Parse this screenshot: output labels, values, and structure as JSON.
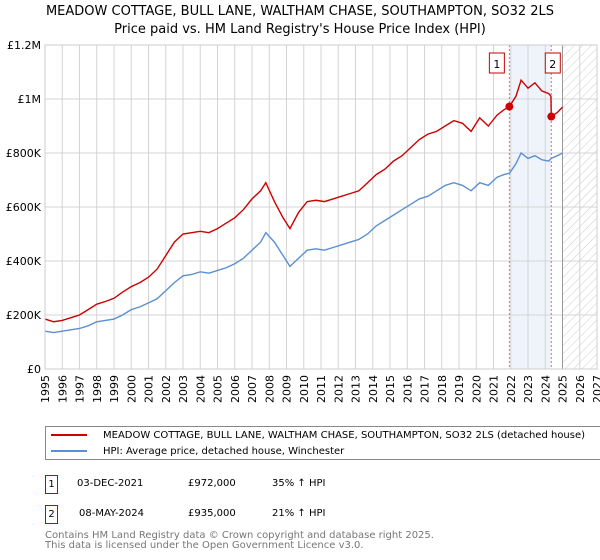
{
  "title_line1": "MEADOW COTTAGE, BULL LANE, WALTHAM CHASE, SOUTHAMPTON, SO32 2LS",
  "title_line2": "Price paid vs. HM Land Registry's House Price Index (HPI)",
  "chart_data": {
    "type": "line",
    "title": "Price paid vs. HM Land Registry's House Price Index (HPI)",
    "xlim": [
      1995,
      2027
    ],
    "ylim": [
      0,
      1200000
    ],
    "y_ticks": [
      {
        "v": 0,
        "label": "£0"
      },
      {
        "v": 200000,
        "label": "£200K"
      },
      {
        "v": 400000,
        "label": "£400K"
      },
      {
        "v": 600000,
        "label": "£600K"
      },
      {
        "v": 800000,
        "label": "£800K"
      },
      {
        "v": 1000000,
        "label": "£1M"
      },
      {
        "v": 1200000,
        "label": "£1.2M"
      }
    ],
    "x_ticks": [
      1995,
      1996,
      1997,
      1998,
      1999,
      2000,
      2001,
      2002,
      2003,
      2004,
      2005,
      2006,
      2007,
      2008,
      2009,
      2010,
      2011,
      2012,
      2013,
      2014,
      2015,
      2016,
      2017,
      2018,
      2019,
      2020,
      2021,
      2022,
      2023,
      2024,
      2025,
      2026,
      2027
    ],
    "grid": true,
    "forecast_hatch_from": 2025.0,
    "shaded_range": [
      2021.92,
      2024.35
    ],
    "series": [
      {
        "name": "MEADOW COTTAGE, BULL LANE, WALTHAM CHASE, SOUTHAMPTON, SO32 2LS (detached house)",
        "color": "#cc0000",
        "x": [
          1995,
          1995.5,
          1996,
          1996.5,
          1997,
          1997.5,
          1998,
          1998.5,
          1999,
          1999.5,
          2000,
          2000.5,
          2001,
          2001.5,
          2002,
          2002.5,
          2003,
          2003.5,
          2004,
          2004.5,
          2005,
          2005.5,
          2006,
          2006.5,
          2007,
          2007.5,
          2007.8,
          2008.3,
          2008.8,
          2009.2,
          2009.7,
          2010.2,
          2010.7,
          2011.2,
          2011.7,
          2012.2,
          2012.7,
          2013.2,
          2013.7,
          2014.2,
          2014.7,
          2015.2,
          2015.7,
          2016.2,
          2016.7,
          2017.2,
          2017.7,
          2018.2,
          2018.7,
          2019.2,
          2019.7,
          2020.2,
          2020.7,
          2021.2,
          2021.6,
          2021.92,
          2022.3,
          2022.6,
          2023.0,
          2023.4,
          2023.8,
          2024.2,
          2024.33,
          2024.35,
          2024.7,
          2025.0
        ],
        "y": [
          185000,
          175000,
          180000,
          190000,
          200000,
          220000,
          240000,
          250000,
          262000,
          285000,
          305000,
          320000,
          340000,
          370000,
          420000,
          470000,
          500000,
          505000,
          510000,
          505000,
          520000,
          540000,
          560000,
          590000,
          630000,
          660000,
          690000,
          620000,
          560000,
          520000,
          580000,
          620000,
          625000,
          620000,
          630000,
          640000,
          650000,
          660000,
          690000,
          720000,
          740000,
          770000,
          790000,
          820000,
          850000,
          870000,
          880000,
          900000,
          920000,
          910000,
          880000,
          930000,
          900000,
          940000,
          960000,
          972000,
          1010000,
          1070000,
          1040000,
          1060000,
          1030000,
          1020000,
          1010000,
          935000,
          950000,
          970000
        ]
      },
      {
        "name": "HPI: Average price, detached house, Winchester",
        "color": "#5b8fd0",
        "x": [
          1995,
          1995.5,
          1996,
          1996.5,
          1997,
          1997.5,
          1998,
          1998.5,
          1999,
          1999.5,
          2000,
          2000.5,
          2001,
          2001.5,
          2002,
          2002.5,
          2003,
          2003.5,
          2004,
          2004.5,
          2005,
          2005.5,
          2006,
          2006.5,
          2007,
          2007.5,
          2007.8,
          2008.3,
          2008.8,
          2009.2,
          2009.7,
          2010.2,
          2010.7,
          2011.2,
          2011.7,
          2012.2,
          2012.7,
          2013.2,
          2013.7,
          2014.2,
          2014.7,
          2015.2,
          2015.7,
          2016.2,
          2016.7,
          2017.2,
          2017.7,
          2018.2,
          2018.7,
          2019.2,
          2019.7,
          2020.2,
          2020.7,
          2021.2,
          2021.6,
          2021.92,
          2022.3,
          2022.6,
          2023.0,
          2023.4,
          2023.8,
          2024.2,
          2024.35,
          2024.7,
          2025.0
        ],
        "y": [
          140000,
          135000,
          140000,
          145000,
          150000,
          160000,
          175000,
          180000,
          185000,
          200000,
          220000,
          230000,
          245000,
          260000,
          290000,
          320000,
          345000,
          350000,
          360000,
          355000,
          365000,
          375000,
          390000,
          410000,
          440000,
          470000,
          505000,
          470000,
          420000,
          380000,
          410000,
          440000,
          445000,
          440000,
          450000,
          460000,
          470000,
          480000,
          500000,
          530000,
          550000,
          570000,
          590000,
          610000,
          630000,
          640000,
          660000,
          680000,
          690000,
          680000,
          660000,
          690000,
          680000,
          710000,
          720000,
          725000,
          760000,
          800000,
          780000,
          790000,
          775000,
          770000,
          780000,
          790000,
          800000
        ]
      }
    ],
    "sales": [
      {
        "label": "1",
        "date": "03-DEC-2021",
        "x": 2021.92,
        "price": "£972,000",
        "value": 972000,
        "hpi_delta": "35% ↑ HPI"
      },
      {
        "label": "2",
        "date": "08-MAY-2024",
        "x": 2024.35,
        "price": "£935,000",
        "value": 935000,
        "hpi_delta": "21% ↑ HPI"
      }
    ]
  },
  "footer_line1": "Contains HM Land Registry data © Crown copyright and database right 2025.",
  "footer_line2": "This data is licensed under the Open Government Licence v3.0."
}
